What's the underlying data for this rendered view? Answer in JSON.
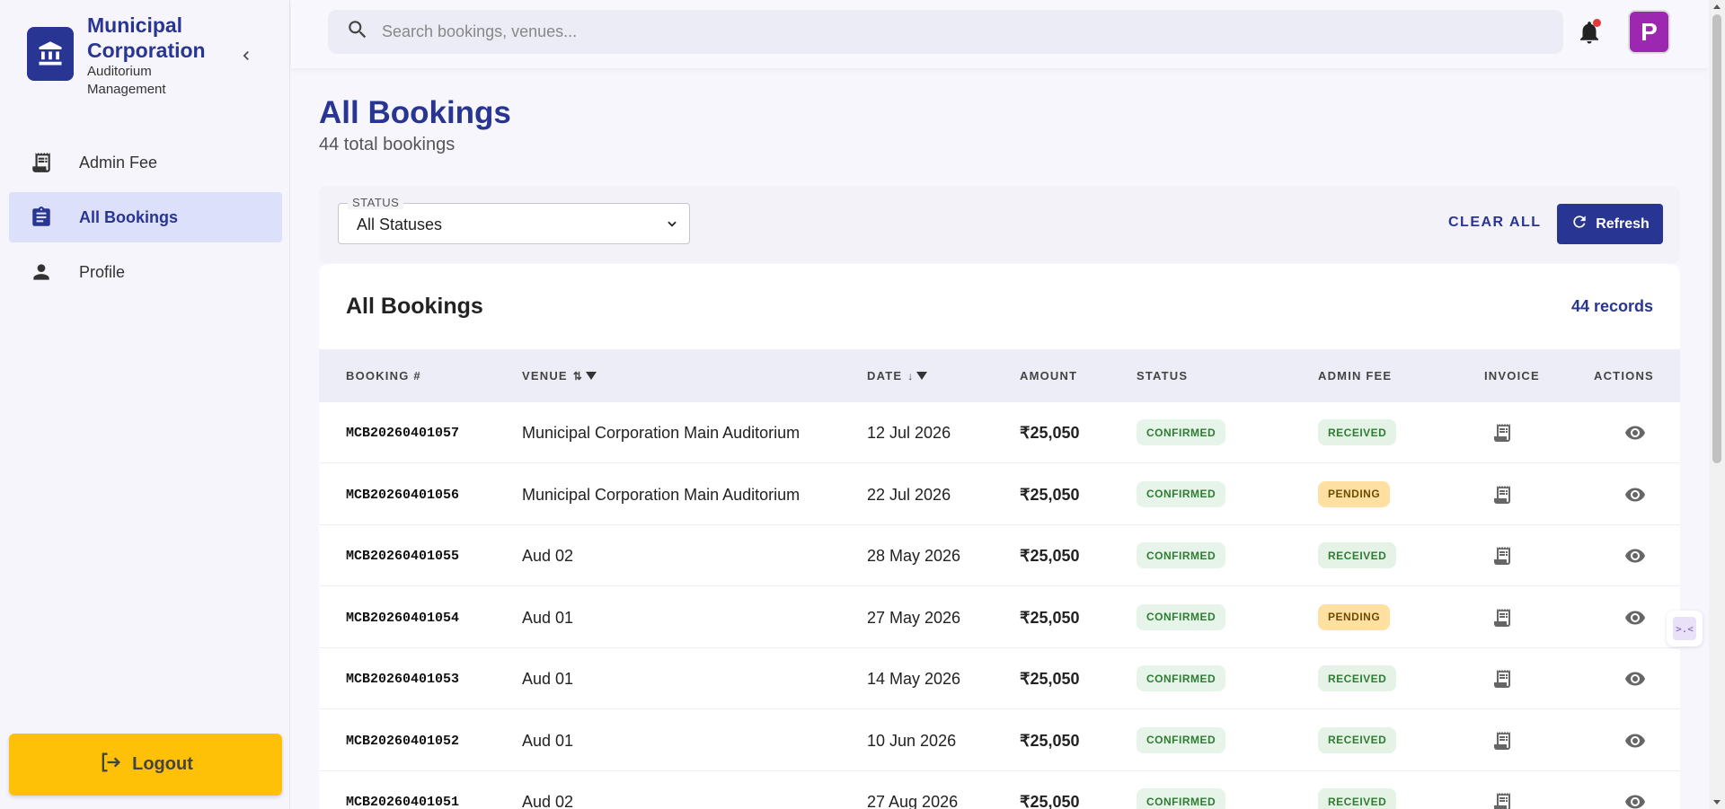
{
  "brand": {
    "title": "Municipal Corporation",
    "subtitle": "Auditorium Management"
  },
  "nav": {
    "items": [
      {
        "label": "Admin Fee",
        "icon": "receipt-icon",
        "active": false
      },
      {
        "label": "All Bookings",
        "icon": "clipboard-icon",
        "active": true
      },
      {
        "label": "Profile",
        "icon": "person-icon",
        "active": false
      }
    ],
    "logout_label": "Logout"
  },
  "topbar": {
    "search_placeholder": "Search bookings, venues...",
    "avatar_initial": "P"
  },
  "page": {
    "title": "All Bookings",
    "subtitle": "44 total bookings"
  },
  "filters": {
    "status_label": "STATUS",
    "status_value": "All Statuses",
    "clear_all_label": "CLEAR ALL",
    "refresh_label": "Refresh"
  },
  "table": {
    "title": "All Bookings",
    "record_count": "44 records",
    "columns": {
      "booking": "BOOKING #",
      "venue": "VENUE",
      "date": "DATE",
      "amount": "AMOUNT",
      "status": "STATUS",
      "admin_fee": "ADMIN FEE",
      "invoice": "INVOICE",
      "actions": "ACTIONS"
    },
    "rows": [
      {
        "booking": "MCB20260401057",
        "venue": "Municipal Corporation Main Auditorium",
        "date": "12 Jul 2026",
        "amount": "₹25,050",
        "status": "CONFIRMED",
        "admin_fee": "RECEIVED"
      },
      {
        "booking": "MCB20260401056",
        "venue": "Municipal Corporation Main Auditorium",
        "date": "22 Jul 2026",
        "amount": "₹25,050",
        "status": "CONFIRMED",
        "admin_fee": "PENDING"
      },
      {
        "booking": "MCB20260401055",
        "venue": "Aud 02",
        "date": "28 May 2026",
        "amount": "₹25,050",
        "status": "CONFIRMED",
        "admin_fee": "RECEIVED"
      },
      {
        "booking": "MCB20260401054",
        "venue": "Aud 01",
        "date": "27 May 2026",
        "amount": "₹25,050",
        "status": "CONFIRMED",
        "admin_fee": "PENDING"
      },
      {
        "booking": "MCB20260401053",
        "venue": "Aud 01",
        "date": "14 May 2026",
        "amount": "₹25,050",
        "status": "CONFIRMED",
        "admin_fee": "RECEIVED"
      },
      {
        "booking": "MCB20260401052",
        "venue": "Aud 01",
        "date": "10 Jun 2026",
        "amount": "₹25,050",
        "status": "CONFIRMED",
        "admin_fee": "RECEIVED"
      },
      {
        "booking": "MCB20260401051",
        "venue": "Aud 02",
        "date": "27 Aug 2026",
        "amount": "₹25,050",
        "status": "CONFIRMED",
        "admin_fee": "RECEIVED"
      }
    ]
  },
  "colors": {
    "primary": "#283593",
    "accent_yellow": "#ffc107",
    "avatar": "#9c27b0",
    "confirmed_bg": "#e6f4ea",
    "pending_bg": "#ffe0a3"
  }
}
